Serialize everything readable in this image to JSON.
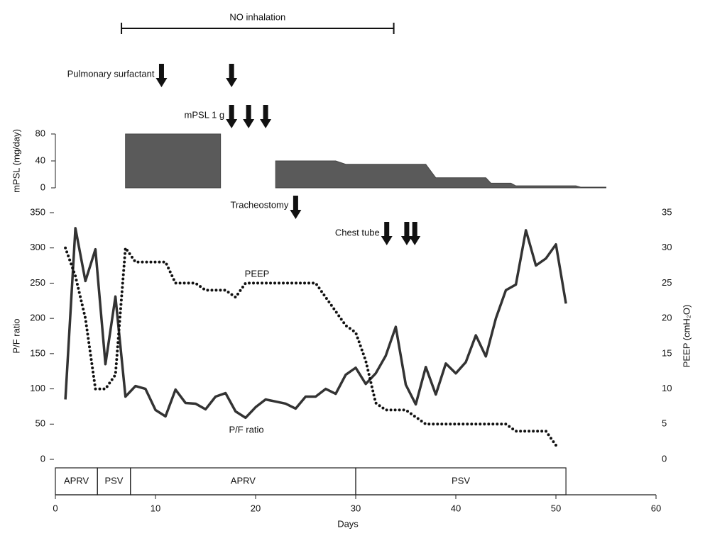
{
  "chart_data": {
    "type": "line",
    "xlabel": "Days",
    "ylabel": "P/F ratio",
    "y2label": "PEEP (cmH₂O)",
    "xlim": [
      0,
      60
    ],
    "xticks": [
      0,
      10,
      20,
      30,
      40,
      50,
      60
    ],
    "ylim": [
      0,
      350
    ],
    "yticks": [
      0,
      50,
      100,
      150,
      200,
      250,
      300,
      350
    ],
    "y2lim": [
      0,
      35
    ],
    "y2ticks": [
      0,
      5,
      10,
      15,
      20,
      25,
      30,
      35
    ],
    "series": [
      {
        "name": "P/F ratio",
        "color": "#333333",
        "style": "solid",
        "x": [
          1,
          2,
          3,
          4,
          5,
          6,
          7,
          8,
          9,
          10,
          11,
          12,
          13,
          14,
          15,
          16,
          17,
          18,
          19,
          20,
          21,
          22,
          23,
          24,
          25,
          26,
          27,
          28,
          29,
          30,
          31,
          32,
          33,
          34,
          35,
          36,
          37,
          38,
          39,
          40,
          41,
          42,
          43,
          44,
          45,
          46,
          47,
          48,
          49,
          50,
          51
        ],
        "values": [
          85,
          328,
          253,
          298,
          135,
          231,
          89,
          104,
          100,
          70,
          61,
          99,
          80,
          79,
          71,
          89,
          94,
          68,
          59,
          74,
          85,
          82,
          79,
          72,
          89,
          89,
          100,
          93,
          120,
          130,
          107,
          122,
          147,
          188,
          106,
          78,
          131,
          92,
          136,
          122,
          138,
          176,
          146,
          200,
          240,
          248,
          325,
          275,
          285,
          305,
          221
        ]
      },
      {
        "name": "PEEP",
        "color": "#111111",
        "style": "dotted",
        "axis": "y2",
        "x": [
          1,
          2,
          3,
          4,
          5,
          6,
          7,
          8,
          9,
          10,
          11,
          12,
          13,
          14,
          15,
          16,
          17,
          18,
          19,
          20,
          21,
          22,
          23,
          24,
          25,
          26,
          27,
          28,
          29,
          30,
          31,
          32,
          33,
          34,
          35,
          36,
          37,
          38,
          39,
          40,
          41,
          42,
          43,
          44,
          45,
          46,
          47,
          48,
          49,
          50
        ],
        "values": [
          30,
          26,
          20,
          10,
          10,
          12,
          30,
          28,
          28,
          28,
          28,
          25,
          25,
          25,
          24,
          24,
          24,
          23,
          25,
          25,
          25,
          25,
          25,
          25,
          25,
          25,
          23,
          21,
          19,
          18,
          14,
          8,
          7,
          7,
          7,
          6,
          5,
          5,
          5,
          5,
          5,
          5,
          5,
          5,
          5,
          4,
          4,
          4,
          4,
          2
        ]
      }
    ],
    "mpsl": {
      "ylabel": "mPSL (mg/day)",
      "ylim": [
        0,
        80
      ],
      "yticks": [
        0,
        40,
        80
      ],
      "color": "#5a5a5a",
      "x": [
        7,
        16.5,
        19.5,
        22,
        28,
        29,
        37,
        38,
        43,
        43.5,
        45.5,
        46,
        52,
        52.5,
        55
      ],
      "values": [
        80,
        80,
        null,
        40,
        40,
        35,
        35,
        15,
        15,
        7,
        7,
        3,
        3,
        1,
        1
      ]
    },
    "no_inhalation": {
      "label": "NO inhalation",
      "start": 6.6,
      "end": 33.8
    },
    "events": [
      {
        "label": "Pulmonary surfactant",
        "days": [
          10.6,
          17.6
        ],
        "row": 0
      },
      {
        "label": "mPSL 1 g",
        "days": [
          17.6,
          19.3,
          21
        ],
        "row": 1
      },
      {
        "label": "Tracheostomy",
        "days": [
          24
        ],
        "row": 2
      },
      {
        "label": "Chest tube",
        "days": [
          33.1,
          35.1,
          35.9
        ],
        "row": 3
      }
    ],
    "modes": [
      {
        "label": "APRV",
        "start": 0,
        "end": 4.2
      },
      {
        "label": "PSV",
        "start": 4.2,
        "end": 7.5
      },
      {
        "label": "APRV",
        "start": 7.5,
        "end": 30
      },
      {
        "label": "PSV",
        "start": 30,
        "end": 51
      }
    ]
  }
}
